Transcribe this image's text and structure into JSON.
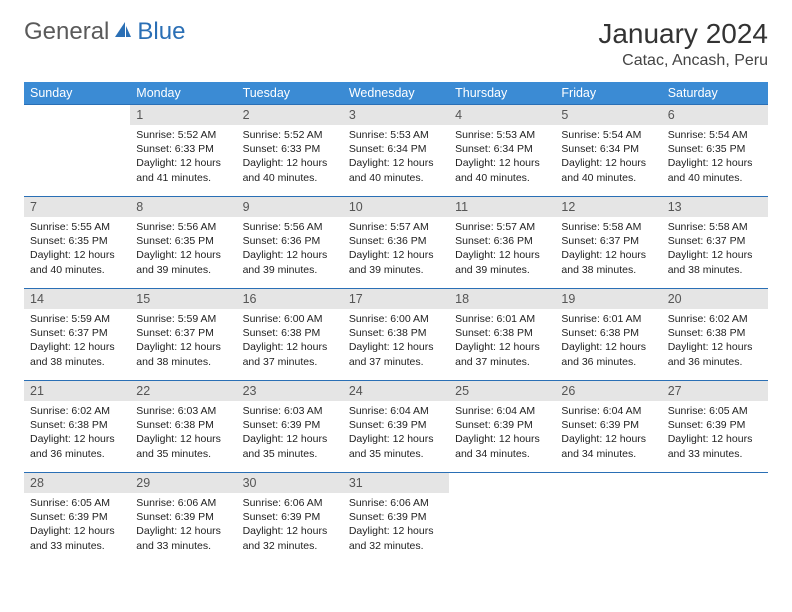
{
  "logo": {
    "text1": "General",
    "text2": "Blue"
  },
  "title": "January 2024",
  "location": "Catac, Ancash, Peru",
  "colors": {
    "header_bg": "#3b8bd4",
    "header_fg": "#ffffff",
    "rule": "#2a6fb5",
    "daynum_bg": "#e5e5e5",
    "daynum_fg": "#555555",
    "body_fg": "#222222",
    "page_bg": "#ffffff",
    "logo_gray": "#5a5a5a",
    "logo_blue": "#2a6fb5"
  },
  "day_names": [
    "Sunday",
    "Monday",
    "Tuesday",
    "Wednesday",
    "Thursday",
    "Friday",
    "Saturday"
  ],
  "weeks": [
    [
      null,
      {
        "n": "1",
        "sr": "5:52 AM",
        "ss": "6:33 PM",
        "dl": "12 hours and 41 minutes."
      },
      {
        "n": "2",
        "sr": "5:52 AM",
        "ss": "6:33 PM",
        "dl": "12 hours and 40 minutes."
      },
      {
        "n": "3",
        "sr": "5:53 AM",
        "ss": "6:34 PM",
        "dl": "12 hours and 40 minutes."
      },
      {
        "n": "4",
        "sr": "5:53 AM",
        "ss": "6:34 PM",
        "dl": "12 hours and 40 minutes."
      },
      {
        "n": "5",
        "sr": "5:54 AM",
        "ss": "6:34 PM",
        "dl": "12 hours and 40 minutes."
      },
      {
        "n": "6",
        "sr": "5:54 AM",
        "ss": "6:35 PM",
        "dl": "12 hours and 40 minutes."
      }
    ],
    [
      {
        "n": "7",
        "sr": "5:55 AM",
        "ss": "6:35 PM",
        "dl": "12 hours and 40 minutes."
      },
      {
        "n": "8",
        "sr": "5:56 AM",
        "ss": "6:35 PM",
        "dl": "12 hours and 39 minutes."
      },
      {
        "n": "9",
        "sr": "5:56 AM",
        "ss": "6:36 PM",
        "dl": "12 hours and 39 minutes."
      },
      {
        "n": "10",
        "sr": "5:57 AM",
        "ss": "6:36 PM",
        "dl": "12 hours and 39 minutes."
      },
      {
        "n": "11",
        "sr": "5:57 AM",
        "ss": "6:36 PM",
        "dl": "12 hours and 39 minutes."
      },
      {
        "n": "12",
        "sr": "5:58 AM",
        "ss": "6:37 PM",
        "dl": "12 hours and 38 minutes."
      },
      {
        "n": "13",
        "sr": "5:58 AM",
        "ss": "6:37 PM",
        "dl": "12 hours and 38 minutes."
      }
    ],
    [
      {
        "n": "14",
        "sr": "5:59 AM",
        "ss": "6:37 PM",
        "dl": "12 hours and 38 minutes."
      },
      {
        "n": "15",
        "sr": "5:59 AM",
        "ss": "6:37 PM",
        "dl": "12 hours and 38 minutes."
      },
      {
        "n": "16",
        "sr": "6:00 AM",
        "ss": "6:38 PM",
        "dl": "12 hours and 37 minutes."
      },
      {
        "n": "17",
        "sr": "6:00 AM",
        "ss": "6:38 PM",
        "dl": "12 hours and 37 minutes."
      },
      {
        "n": "18",
        "sr": "6:01 AM",
        "ss": "6:38 PM",
        "dl": "12 hours and 37 minutes."
      },
      {
        "n": "19",
        "sr": "6:01 AM",
        "ss": "6:38 PM",
        "dl": "12 hours and 36 minutes."
      },
      {
        "n": "20",
        "sr": "6:02 AM",
        "ss": "6:38 PM",
        "dl": "12 hours and 36 minutes."
      }
    ],
    [
      {
        "n": "21",
        "sr": "6:02 AM",
        "ss": "6:38 PM",
        "dl": "12 hours and 36 minutes."
      },
      {
        "n": "22",
        "sr": "6:03 AM",
        "ss": "6:38 PM",
        "dl": "12 hours and 35 minutes."
      },
      {
        "n": "23",
        "sr": "6:03 AM",
        "ss": "6:39 PM",
        "dl": "12 hours and 35 minutes."
      },
      {
        "n": "24",
        "sr": "6:04 AM",
        "ss": "6:39 PM",
        "dl": "12 hours and 35 minutes."
      },
      {
        "n": "25",
        "sr": "6:04 AM",
        "ss": "6:39 PM",
        "dl": "12 hours and 34 minutes."
      },
      {
        "n": "26",
        "sr": "6:04 AM",
        "ss": "6:39 PM",
        "dl": "12 hours and 34 minutes."
      },
      {
        "n": "27",
        "sr": "6:05 AM",
        "ss": "6:39 PM",
        "dl": "12 hours and 33 minutes."
      }
    ],
    [
      {
        "n": "28",
        "sr": "6:05 AM",
        "ss": "6:39 PM",
        "dl": "12 hours and 33 minutes."
      },
      {
        "n": "29",
        "sr": "6:06 AM",
        "ss": "6:39 PM",
        "dl": "12 hours and 33 minutes."
      },
      {
        "n": "30",
        "sr": "6:06 AM",
        "ss": "6:39 PM",
        "dl": "12 hours and 32 minutes."
      },
      {
        "n": "31",
        "sr": "6:06 AM",
        "ss": "6:39 PM",
        "dl": "12 hours and 32 minutes."
      },
      null,
      null,
      null
    ]
  ],
  "labels": {
    "sunrise": "Sunrise:",
    "sunset": "Sunset:",
    "daylight": "Daylight:"
  }
}
